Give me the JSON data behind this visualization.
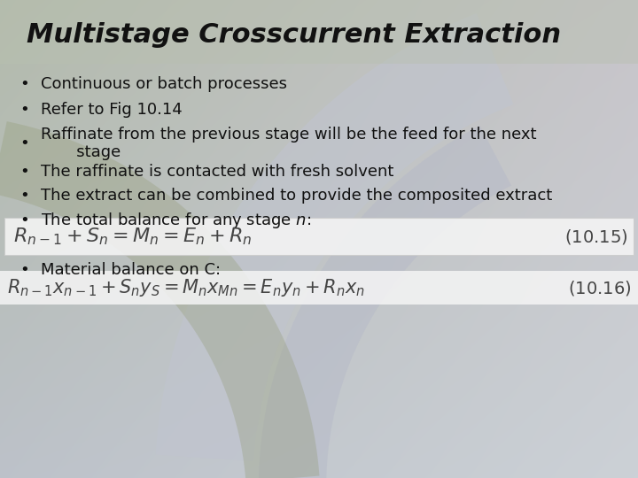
{
  "title": "Multistage Crosscurrent Extraction",
  "title_fontsize": 22,
  "title_color": "#111111",
  "bullet_points": [
    "Continuous or batch processes",
    "Refer to Fig 10.14",
    "Raffinate from the previous stage will be the feed for the next\n       stage",
    "The raffinate is contacted with fresh solvent",
    "The extract can be combined to provide the composited extract",
    "The total balance for any stage $n$:"
  ],
  "bullet_fontsize": 13,
  "bullet_color": "#111111",
  "eq1": "$R_{n-1} + S_n = M_n = E_n + R_n$",
  "eq1_label": "$(10.15)$",
  "eq1_fontsize": 16,
  "eq2_bullet": "Material balance on C:",
  "eq2": "$R_{n-1}x_{n-1} + S_ny_S = M_nx_{Mn} = E_ny_n + R_nx_n$",
  "eq2_label": "$(10.16)$",
  "eq2_fontsize": 15,
  "eq_bg_color": "#f5f5f5",
  "eq_text_color": "#444444",
  "eq_border_color": "#cccccc"
}
